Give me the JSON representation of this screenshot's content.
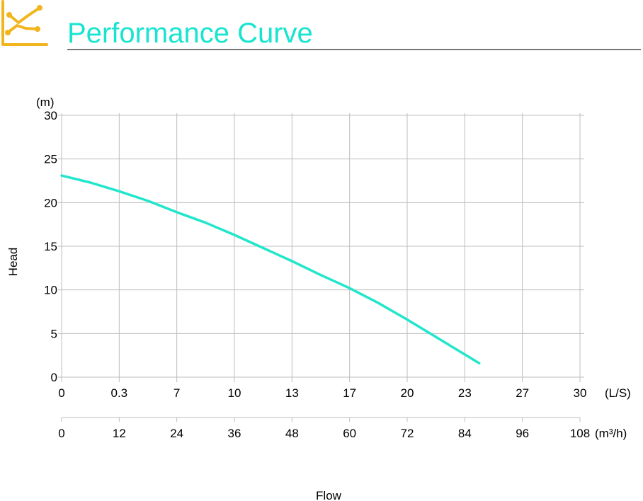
{
  "header": {
    "title": "Performance Curve",
    "icon": "line-chart-icon",
    "title_color": "#18e4cf",
    "icon_color": "#f2b51e",
    "rule_color": "#4a4a4a"
  },
  "chart_data": {
    "type": "line",
    "title": "Performance Curve",
    "ylabel": "Head",
    "y_unit": "(m)",
    "xlabel": "Flow",
    "ylim": [
      0,
      30
    ],
    "y_ticks": [
      "0",
      "5",
      "10",
      "15",
      "20",
      "25",
      "30"
    ],
    "x_axis_ls": {
      "unit": "(L/S)",
      "tick_labels": [
        "0",
        "0.3",
        "7",
        "10",
        "13",
        "17",
        "20",
        "23",
        "27",
        "30"
      ]
    },
    "x_axis_m3h": {
      "unit": "(m³/h)",
      "xlim": [
        0,
        108
      ],
      "tick_labels": [
        "0",
        "12",
        "24",
        "36",
        "48",
        "60",
        "72",
        "84",
        "96",
        "108"
      ]
    },
    "grid": true,
    "line_color": "#22e6cc",
    "series": [
      {
        "x_m3h": [
          0,
          6,
          12,
          18,
          24,
          30,
          36,
          42,
          48,
          54,
          60,
          66,
          72,
          78,
          84,
          87
        ],
        "y": [
          23.1,
          22.3,
          21.3,
          20.2,
          18.9,
          17.7,
          16.3,
          14.8,
          13.3,
          11.7,
          10.2,
          8.5,
          6.6,
          4.6,
          2.6,
          1.6
        ]
      }
    ]
  }
}
